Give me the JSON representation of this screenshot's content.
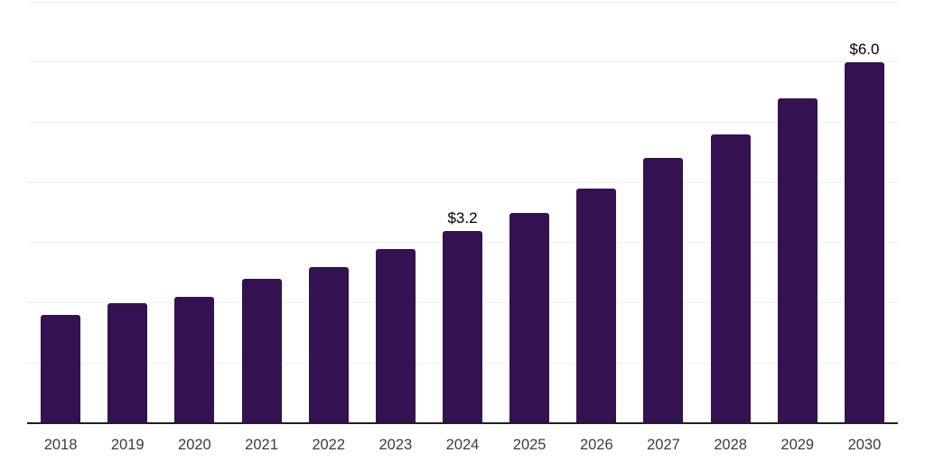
{
  "chart_data": {
    "type": "bar",
    "title": "",
    "xlabel": "",
    "ylabel": "",
    "categories": [
      "2018",
      "2019",
      "2020",
      "2021",
      "2022",
      "2023",
      "2024",
      "2025",
      "2026",
      "2027",
      "2028",
      "2029",
      "2030"
    ],
    "values": [
      1.8,
      2.0,
      2.1,
      2.4,
      2.6,
      2.9,
      3.2,
      3.5,
      3.9,
      4.4,
      4.8,
      5.4,
      6.0
    ],
    "annotations": [
      {
        "category": "2024",
        "text": "$3.2"
      },
      {
        "category": "2030",
        "text": "$6.0"
      }
    ],
    "ylim": [
      0,
      7
    ],
    "gridline_step": 1,
    "grid": true,
    "legend": false,
    "y_axis_labels_visible": false,
    "colors": {
      "bar": "#341150",
      "gridline": "#f0f0f0",
      "axis": "#202020",
      "tick_label": "#3d3d3d",
      "value_label": "#000000",
      "background": "#ffffff"
    }
  }
}
